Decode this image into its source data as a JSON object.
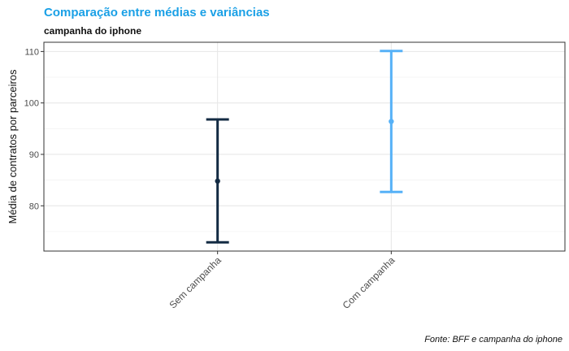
{
  "title": "Comparação entre médias e variâncias",
  "subtitle": "campanha do iphone",
  "caption": "Fonte: BFF e campanha do iphone",
  "chart_data": {
    "type": "errorbar",
    "categories": [
      "Sem campanha",
      "Com campanha"
    ],
    "mean": [
      84.8,
      96.4
    ],
    "lower": [
      72.9,
      82.7
    ],
    "upper": [
      96.8,
      110.1
    ],
    "colors": [
      "#132b43",
      "#56b1f7"
    ],
    "xlabel": "",
    "ylabel": "Média de contratos por parceiros",
    "yticks": [
      80,
      90,
      100,
      110
    ],
    "ylim": [
      71.2,
      111.8
    ],
    "grid": true
  }
}
